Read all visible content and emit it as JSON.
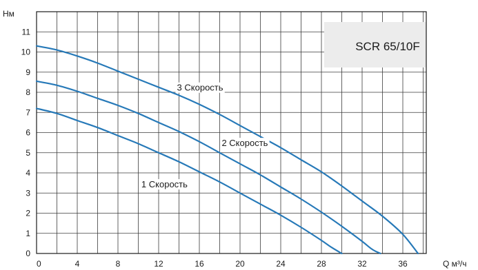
{
  "chart_data": {
    "type": "line",
    "title": "SCR 65/10F",
    "xlabel": "Q м³/ч",
    "ylabel": "Нм",
    "xlim": [
      0,
      40
    ],
    "ylim": [
      0,
      11.5
    ],
    "x_ticks": [
      "0",
      "4",
      "8",
      "12",
      "16",
      "20",
      "24",
      "28",
      "32",
      "36"
    ],
    "y_ticks": [
      "0",
      "1",
      "2",
      "3",
      "4",
      "5",
      "6",
      "7",
      "8",
      "9",
      "10",
      "11"
    ],
    "grid": true,
    "series": [
      {
        "name": "1 Скорость",
        "x": [
          0,
          2,
          4,
          6,
          8,
          10,
          12,
          14,
          16,
          18,
          20,
          22,
          24,
          26,
          28,
          29,
          30
        ],
        "y": [
          7.2,
          6.95,
          6.6,
          6.25,
          5.85,
          5.45,
          5.0,
          4.55,
          4.05,
          3.55,
          3.0,
          2.45,
          1.9,
          1.3,
          0.65,
          0.3,
          0.0
        ]
      },
      {
        "name": "2 Скорость",
        "x": [
          0,
          2,
          4,
          6,
          8,
          10,
          12,
          14,
          16,
          18,
          20,
          22,
          24,
          26,
          28,
          30,
          32,
          33,
          33.8
        ],
        "y": [
          8.55,
          8.35,
          8.05,
          7.7,
          7.35,
          6.95,
          6.5,
          6.05,
          5.55,
          5.0,
          4.45,
          3.9,
          3.3,
          2.7,
          2.05,
          1.35,
          0.6,
          0.2,
          0.0
        ]
      },
      {
        "name": "3 Скорость",
        "x": [
          0,
          2,
          4,
          6,
          8,
          10,
          12,
          14,
          16,
          18,
          20,
          22,
          24,
          26,
          28,
          30,
          32,
          34,
          36,
          37.5
        ],
        "y": [
          10.3,
          10.1,
          9.8,
          9.45,
          9.05,
          8.65,
          8.25,
          7.85,
          7.4,
          6.9,
          6.35,
          5.8,
          5.25,
          4.65,
          4.05,
          3.35,
          2.6,
          1.85,
          0.95,
          0.0
        ]
      }
    ],
    "legend": "inline labels",
    "line_color": "#2679b8"
  }
}
